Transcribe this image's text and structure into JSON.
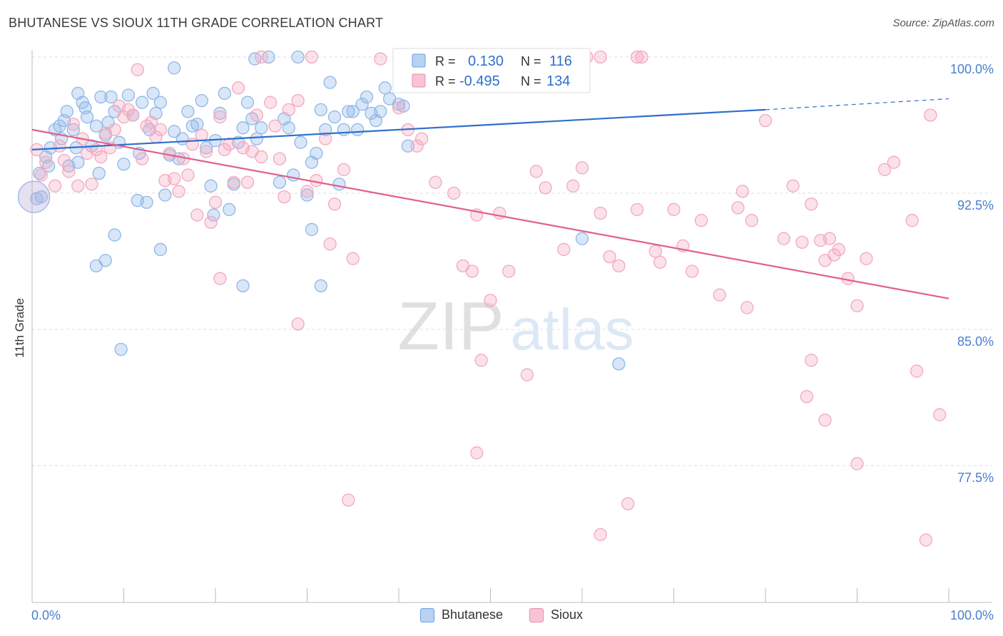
{
  "title": "BHUTANESE VS SIOUX 11TH GRADE CORRELATION CHART",
  "source": "Source: ZipAtlas.com",
  "watermark": {
    "zip": "ZIP",
    "atlas": "atlas"
  },
  "chart_data": {
    "type": "scatter",
    "ylabel": "11th Grade",
    "xlim": [
      0,
      100
    ],
    "ylim": [
      71.0,
      100.5
    ],
    "x_tick_labels": [
      "0.0%",
      "100.0%"
    ],
    "y_ticks": [
      100.0,
      92.5,
      85.0,
      77.5
    ],
    "y_tick_labels": [
      "100.0%",
      "92.5%",
      "85.0%",
      "77.5%"
    ],
    "grid": "horizontal dashed",
    "legend_position": "top-center",
    "series": [
      {
        "name": "Bhutanese",
        "color": "#8fb8e8",
        "line_color": "#2f6fcc",
        "R": "0.130",
        "N": "116",
        "trend": {
          "x0": 0,
          "y0": 94.9,
          "x1": 80,
          "y1": 97.1,
          "dash_to_x": 100,
          "dash_to_y": 97.7
        },
        "points": [
          [
            0.5,
            92.2
          ],
          [
            0.8,
            93.6
          ],
          [
            1,
            92.3
          ],
          [
            1.5,
            94.5
          ],
          [
            1.8,
            94
          ],
          [
            2,
            95
          ],
          [
            2.5,
            96
          ],
          [
            3,
            96.2
          ],
          [
            3.2,
            95.5
          ],
          [
            3.5,
            96.5
          ],
          [
            3.8,
            97
          ],
          [
            4,
            94
          ],
          [
            4.5,
            96
          ],
          [
            4.8,
            95
          ],
          [
            5,
            94.2
          ],
          [
            5,
            98
          ],
          [
            5.5,
            97.5
          ],
          [
            5.8,
            97.2
          ],
          [
            6,
            96.7
          ],
          [
            6.5,
            95.1
          ],
          [
            7,
            96.2
          ],
          [
            7.3,
            93.6
          ],
          [
            7.5,
            97.8
          ],
          [
            8,
            95.7
          ],
          [
            8.3,
            96.4
          ],
          [
            8.6,
            97.8
          ],
          [
            9,
            97
          ],
          [
            9.5,
            95.3
          ],
          [
            10,
            94.1
          ],
          [
            10.5,
            97.9
          ],
          [
            11,
            96.8
          ],
          [
            11.5,
            92.1
          ],
          [
            11.7,
            94.7
          ],
          [
            12,
            97.5
          ],
          [
            12.5,
            92
          ],
          [
            12.8,
            96
          ],
          [
            13.2,
            98
          ],
          [
            13.5,
            96.9
          ],
          [
            14,
            97.5
          ],
          [
            14.5,
            92.4
          ],
          [
            15,
            94.6
          ],
          [
            15.5,
            95.9
          ],
          [
            16,
            94.4
          ],
          [
            16.4,
            95.5
          ],
          [
            17,
            97
          ],
          [
            17.5,
            96.2
          ],
          [
            18,
            96.3
          ],
          [
            18.5,
            97.6
          ],
          [
            19,
            95
          ],
          [
            19.5,
            92.9
          ],
          [
            19.8,
            91.3
          ],
          [
            20,
            95.4
          ],
          [
            20.5,
            96.9
          ],
          [
            21,
            98
          ],
          [
            21.5,
            91.6
          ],
          [
            22,
            93
          ],
          [
            22.5,
            95.3
          ],
          [
            23,
            96.1
          ],
          [
            23.5,
            97.5
          ],
          [
            24,
            96.6
          ],
          [
            24.5,
            95.5
          ],
          [
            25,
            96.1
          ],
          [
            25.8,
            100
          ],
          [
            27,
            93.1
          ],
          [
            27.5,
            96.6
          ],
          [
            28,
            96.1
          ],
          [
            28.5,
            93.5
          ],
          [
            29,
            100
          ],
          [
            29.3,
            95.3
          ],
          [
            30,
            92.4
          ],
          [
            30.5,
            94.2
          ],
          [
            31,
            94.7
          ],
          [
            31.5,
            97.1
          ],
          [
            32,
            96
          ],
          [
            32.5,
            98.6
          ],
          [
            33,
            96.7
          ],
          [
            33.5,
            93
          ],
          [
            34,
            96
          ],
          [
            34.5,
            97
          ],
          [
            35,
            97
          ],
          [
            35.5,
            96
          ],
          [
            36,
            97.4
          ],
          [
            36.5,
            97.8
          ],
          [
            37,
            96.9
          ],
          [
            37.5,
            96.5
          ],
          [
            38,
            97
          ],
          [
            38.5,
            98.3
          ],
          [
            39,
            97.7
          ],
          [
            40,
            97.4
          ],
          [
            40.5,
            97.3
          ],
          [
            41,
            95.1
          ],
          [
            42,
            99.7
          ],
          [
            8,
            88.8
          ],
          [
            7,
            88.5
          ],
          [
            9,
            90.2
          ],
          [
            14,
            89.4
          ],
          [
            30.5,
            90.5
          ],
          [
            23,
            87.4
          ],
          [
            31.5,
            87.4
          ],
          [
            9.7,
            83.9
          ],
          [
            60,
            90
          ],
          [
            64,
            83.1
          ],
          [
            15.5,
            99.4
          ],
          [
            24.3,
            99.9
          ]
        ]
      },
      {
        "name": "Sioux",
        "color": "#f4a8c0",
        "line_color": "#e0608a",
        "R": "-0.495",
        "N": "134",
        "trend": {
          "x0": 0,
          "y0": 96.0,
          "x1": 100,
          "y1": 86.7
        },
        "points": [
          [
            0.5,
            94.9
          ],
          [
            1,
            93.5
          ],
          [
            1.5,
            94.2
          ],
          [
            2.5,
            92.9
          ],
          [
            3,
            95.1
          ],
          [
            3.5,
            94.3
          ],
          [
            4,
            93.7
          ],
          [
            4.5,
            96.3
          ],
          [
            5,
            92.9
          ],
          [
            5.5,
            95.5
          ],
          [
            6,
            94.7
          ],
          [
            6.5,
            93
          ],
          [
            7,
            94.9
          ],
          [
            7.5,
            94.5
          ],
          [
            8,
            95.8
          ],
          [
            8.5,
            95
          ],
          [
            9,
            96
          ],
          [
            9.5,
            97.3
          ],
          [
            10,
            96.7
          ],
          [
            10.5,
            97.1
          ],
          [
            11,
            96.8
          ],
          [
            11.5,
            99.3
          ],
          [
            12,
            94.4
          ],
          [
            12.5,
            96.2
          ],
          [
            13,
            96.4
          ],
          [
            13.5,
            95.6
          ],
          [
            14,
            96
          ],
          [
            14.5,
            93.2
          ],
          [
            15,
            94.7
          ],
          [
            15.5,
            93.3
          ],
          [
            16,
            92.6
          ],
          [
            16.5,
            94.4
          ],
          [
            17,
            93.5
          ],
          [
            17.5,
            95.2
          ],
          [
            18,
            91.3
          ],
          [
            18.5,
            95.7
          ],
          [
            19,
            94.8
          ],
          [
            19.5,
            90.9
          ],
          [
            20,
            92
          ],
          [
            20.5,
            96.7
          ],
          [
            21,
            94.9
          ],
          [
            21.5,
            95.2
          ],
          [
            22,
            93.1
          ],
          [
            22.5,
            98.3
          ],
          [
            23,
            95
          ],
          [
            23.5,
            93.1
          ],
          [
            24,
            94.8
          ],
          [
            24.5,
            96.8
          ],
          [
            25,
            94.5
          ],
          [
            26,
            97.5
          ],
          [
            26.5,
            96.2
          ],
          [
            27,
            94.4
          ],
          [
            27.5,
            92.3
          ],
          [
            28,
            97.1
          ],
          [
            29,
            97.6
          ],
          [
            30,
            92.6
          ],
          [
            31,
            93.2
          ],
          [
            32,
            95.5
          ],
          [
            32.5,
            89.7
          ],
          [
            33,
            91.9
          ],
          [
            34,
            93.8
          ],
          [
            35,
            88.9
          ],
          [
            38,
            99.9
          ],
          [
            40,
            97.2
          ],
          [
            41,
            96
          ],
          [
            42,
            95.1
          ],
          [
            42.5,
            95.5
          ],
          [
            44,
            93.1
          ],
          [
            46,
            92.5
          ],
          [
            47,
            88.5
          ],
          [
            48,
            88.2
          ],
          [
            48.5,
            91.3
          ],
          [
            49,
            83.3
          ],
          [
            50,
            86.6
          ],
          [
            51,
            91.4
          ],
          [
            52,
            88.2
          ],
          [
            54,
            82.5
          ],
          [
            55,
            93.7
          ],
          [
            56,
            92.8
          ],
          [
            58,
            89.4
          ],
          [
            59,
            92.9
          ],
          [
            60,
            93.9
          ],
          [
            62,
            91.4
          ],
          [
            63,
            89
          ],
          [
            64,
            88.5
          ],
          [
            66,
            91.6
          ],
          [
            68,
            89.3
          ],
          [
            68.5,
            88.7
          ],
          [
            70,
            91.6
          ],
          [
            71,
            89.6
          ],
          [
            72,
            88.2
          ],
          [
            73,
            91
          ],
          [
            75,
            86.9
          ],
          [
            77,
            91.7
          ],
          [
            77.5,
            92.6
          ],
          [
            78,
            86.2
          ],
          [
            78.5,
            91
          ],
          [
            80,
            96.5
          ],
          [
            82,
            90
          ],
          [
            83,
            92.9
          ],
          [
            84,
            89.8
          ],
          [
            85,
            91.9
          ],
          [
            86,
            89.9
          ],
          [
            86.5,
            88.8
          ],
          [
            87,
            90
          ],
          [
            87.5,
            89.1
          ],
          [
            88,
            89.4
          ],
          [
            89,
            87.8
          ],
          [
            90,
            86.3
          ],
          [
            91,
            88.9
          ],
          [
            93,
            93.8
          ],
          [
            94,
            94.2
          ],
          [
            96,
            91
          ],
          [
            96.5,
            82.7
          ],
          [
            98,
            96.8
          ],
          [
            99,
            80.3
          ],
          [
            20.5,
            87.8
          ],
          [
            29,
            85.3
          ],
          [
            48.5,
            78.2
          ],
          [
            34.5,
            75.6
          ],
          [
            62,
            73.7
          ],
          [
            65,
            75.4
          ],
          [
            84.5,
            81.3
          ],
          [
            85,
            83.3
          ],
          [
            86.5,
            80
          ],
          [
            90,
            77.6
          ],
          [
            97.5,
            73.4
          ],
          [
            25,
            100
          ],
          [
            30.5,
            100
          ],
          [
            41.5,
            100
          ],
          [
            56,
            100
          ],
          [
            60.5,
            100
          ],
          [
            62,
            100
          ],
          [
            66,
            100
          ],
          [
            66.5,
            100
          ]
        ]
      }
    ]
  }
}
